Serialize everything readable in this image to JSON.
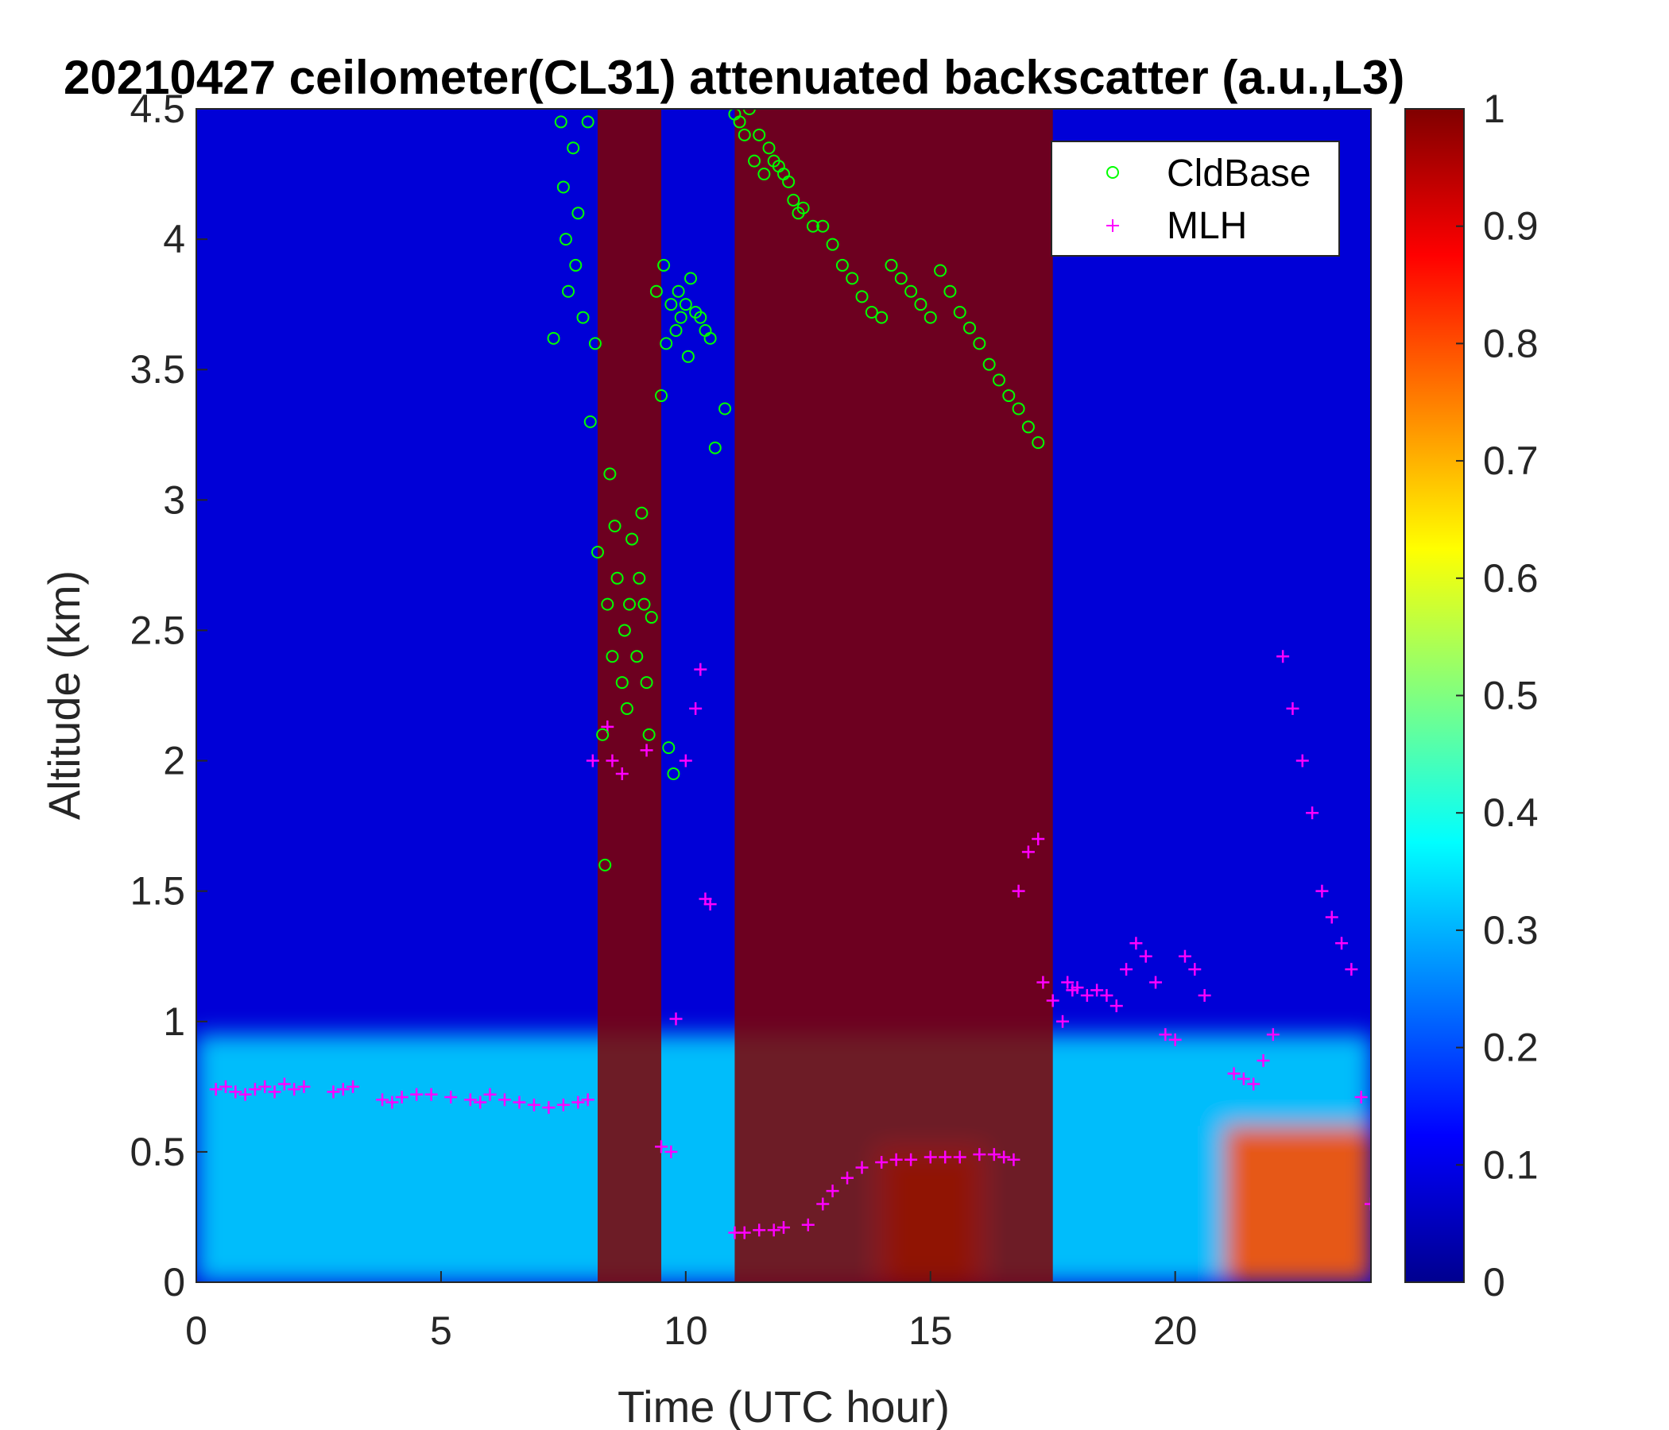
{
  "chart_data": {
    "type": "heatmap",
    "title": "20210427 ceilometer(CL31) attenuated backscatter (a.u.,L3)",
    "xlabel": "Time (UTC hour)",
    "ylabel": "Altitude (km)",
    "xlim": [
      0,
      24
    ],
    "ylim": [
      0,
      4.5
    ],
    "x_ticks": [
      "0",
      "5",
      "10",
      "15",
      "20"
    ],
    "y_ticks": [
      "0",
      "0.5",
      "1",
      "1.5",
      "2",
      "2.5",
      "3",
      "3.5",
      "4",
      "4.5"
    ],
    "colorbar": {
      "colormap": "jet",
      "range": [
        0,
        1
      ],
      "ticks": [
        "0",
        "0.1",
        "0.2",
        "0.3",
        "0.4",
        "0.5",
        "0.6",
        "0.7",
        "0.8",
        "0.9",
        "1"
      ]
    },
    "legend": {
      "placement": "top-right",
      "entries": [
        {
          "label": "CldBase",
          "marker": "circle",
          "color": "#00ff00"
        },
        {
          "label": "MLH",
          "marker": "plus",
          "color": "#ff00ff"
        }
      ]
    },
    "series": [
      {
        "name": "CldBase",
        "marker": "circle",
        "color": "#00ff00",
        "x": [
          7.3,
          7.45,
          7.5,
          7.55,
          7.6,
          7.7,
          7.75,
          7.8,
          7.9,
          8.0,
          8.05,
          8.15,
          8.2,
          8.3,
          8.35,
          8.4,
          8.45,
          8.5,
          8.55,
          8.6,
          8.7,
          8.75,
          8.8,
          8.85,
          8.9,
          9.0,
          9.05,
          9.1,
          9.15,
          9.2,
          9.25,
          9.3,
          9.4,
          9.5,
          9.55,
          9.6,
          9.65,
          9.7,
          9.75,
          9.8,
          9.85,
          9.9,
          10.0,
          10.05,
          10.1,
          10.2,
          10.3,
          10.4,
          10.5,
          10.6,
          10.8,
          11.0,
          11.1,
          11.2,
          11.3,
          11.4,
          11.5,
          11.6,
          11.7,
          11.8,
          11.9,
          12.0,
          12.1,
          12.2,
          12.3,
          12.4,
          12.6,
          12.8,
          13.0,
          13.2,
          13.4,
          13.6,
          13.8,
          14.0,
          14.2,
          14.4,
          14.6,
          14.8,
          15.0,
          15.2,
          15.4,
          15.6,
          15.8,
          16.0,
          16.2,
          16.4,
          16.6,
          16.8,
          17.0,
          17.2
        ],
        "y": [
          3.62,
          4.45,
          4.2,
          4.0,
          3.8,
          4.35,
          3.9,
          4.1,
          3.7,
          4.45,
          3.3,
          3.6,
          2.8,
          2.1,
          1.6,
          2.6,
          3.1,
          2.4,
          2.9,
          2.7,
          2.3,
          2.5,
          2.2,
          2.6,
          2.85,
          2.4,
          2.7,
          2.95,
          2.6,
          2.3,
          2.1,
          2.55,
          3.8,
          3.4,
          3.9,
          3.6,
          2.05,
          3.75,
          1.95,
          3.65,
          3.8,
          3.7,
          3.75,
          3.55,
          3.85,
          3.72,
          3.7,
          3.65,
          3.62,
          3.2,
          3.35,
          4.48,
          4.45,
          4.4,
          4.5,
          4.3,
          4.4,
          4.25,
          4.35,
          4.3,
          4.28,
          4.25,
          4.22,
          4.15,
          4.1,
          4.12,
          4.05,
          4.05,
          3.98,
          3.9,
          3.85,
          3.78,
          3.72,
          3.7,
          3.9,
          3.85,
          3.8,
          3.75,
          3.7,
          3.88,
          3.8,
          3.72,
          3.66,
          3.6,
          3.52,
          3.46,
          3.4,
          3.35,
          3.28,
          3.22
        ]
      },
      {
        "name": "MLH",
        "marker": "plus",
        "color": "#ff00ff",
        "x": [
          0.4,
          0.6,
          0.8,
          1.0,
          1.2,
          1.4,
          1.6,
          1.8,
          2.0,
          2.2,
          2.8,
          3.0,
          3.2,
          3.8,
          4.0,
          4.2,
          4.5,
          4.8,
          5.2,
          5.6,
          5.8,
          6.0,
          6.3,
          6.6,
          6.9,
          7.2,
          7.5,
          7.8,
          8.0,
          8.1,
          8.4,
          8.5,
          8.7,
          9.2,
          9.5,
          9.7,
          9.8,
          10.0,
          10.2,
          10.3,
          10.4,
          10.5,
          11.0,
          11.2,
          11.5,
          11.8,
          12.0,
          12.5,
          12.8,
          13.0,
          13.3,
          13.6,
          14.0,
          14.3,
          14.6,
          15.0,
          15.3,
          15.6,
          16.0,
          16.3,
          16.5,
          16.7,
          16.8,
          17.0,
          17.2,
          17.3,
          17.5,
          17.7,
          17.8,
          17.9,
          18.0,
          18.2,
          18.4,
          18.6,
          18.8,
          19.0,
          19.2,
          19.4,
          19.6,
          19.8,
          20.0,
          20.2,
          20.4,
          20.6,
          21.2,
          21.4,
          21.6,
          21.8,
          22.0,
          22.2,
          22.4,
          22.6,
          22.8,
          23.0,
          23.2,
          23.4,
          23.6,
          23.8,
          24.0
        ],
        "y": [
          0.74,
          0.75,
          0.73,
          0.72,
          0.74,
          0.75,
          0.73,
          0.76,
          0.74,
          0.75,
          0.73,
          0.74,
          0.75,
          0.7,
          0.69,
          0.71,
          0.72,
          0.72,
          0.71,
          0.7,
          0.69,
          0.72,
          0.7,
          0.69,
          0.68,
          0.67,
          0.68,
          0.69,
          0.7,
          2.0,
          2.13,
          2.0,
          1.95,
          2.04,
          0.52,
          0.5,
          1.01,
          2.0,
          2.2,
          2.35,
          1.47,
          1.45,
          0.19,
          0.19,
          0.2,
          0.2,
          0.21,
          0.22,
          0.3,
          0.35,
          0.4,
          0.44,
          0.46,
          0.47,
          0.47,
          0.48,
          0.48,
          0.48,
          0.49,
          0.49,
          0.48,
          0.47,
          1.5,
          1.65,
          1.7,
          1.15,
          1.08,
          1.0,
          1.15,
          1.12,
          1.13,
          1.1,
          1.12,
          1.1,
          1.06,
          1.2,
          1.3,
          1.25,
          1.15,
          0.95,
          0.93,
          1.25,
          1.2,
          1.1,
          0.8,
          0.78,
          0.76,
          0.85,
          0.95,
          2.4,
          2.2,
          2.0,
          1.8,
          1.5,
          1.4,
          1.3,
          1.2,
          0.71,
          0.3
        ]
      }
    ],
    "features": [
      {
        "name": "surface aerosol layer",
        "x": [
          0,
          24
        ],
        "altitude_top": 0.95,
        "level": 0.33
      },
      {
        "name": "daytime aerosol layer",
        "x": [
          14,
          16
        ],
        "altitude_top": 0.5,
        "level": 0.75
      },
      {
        "name": "evening aerosol layer",
        "x": [
          21,
          24
        ],
        "altitude_top": 0.6,
        "level": 0.8
      },
      {
        "name": "thick cloud / precipitation",
        "x": [
          8.2,
          9.5
        ],
        "altitude_top": 4.5,
        "level": 1.0
      },
      {
        "name": "descending cloud layer",
        "x": [
          11,
          17.5
        ],
        "altitude_top": 4.5,
        "level": 1.0
      }
    ]
  }
}
